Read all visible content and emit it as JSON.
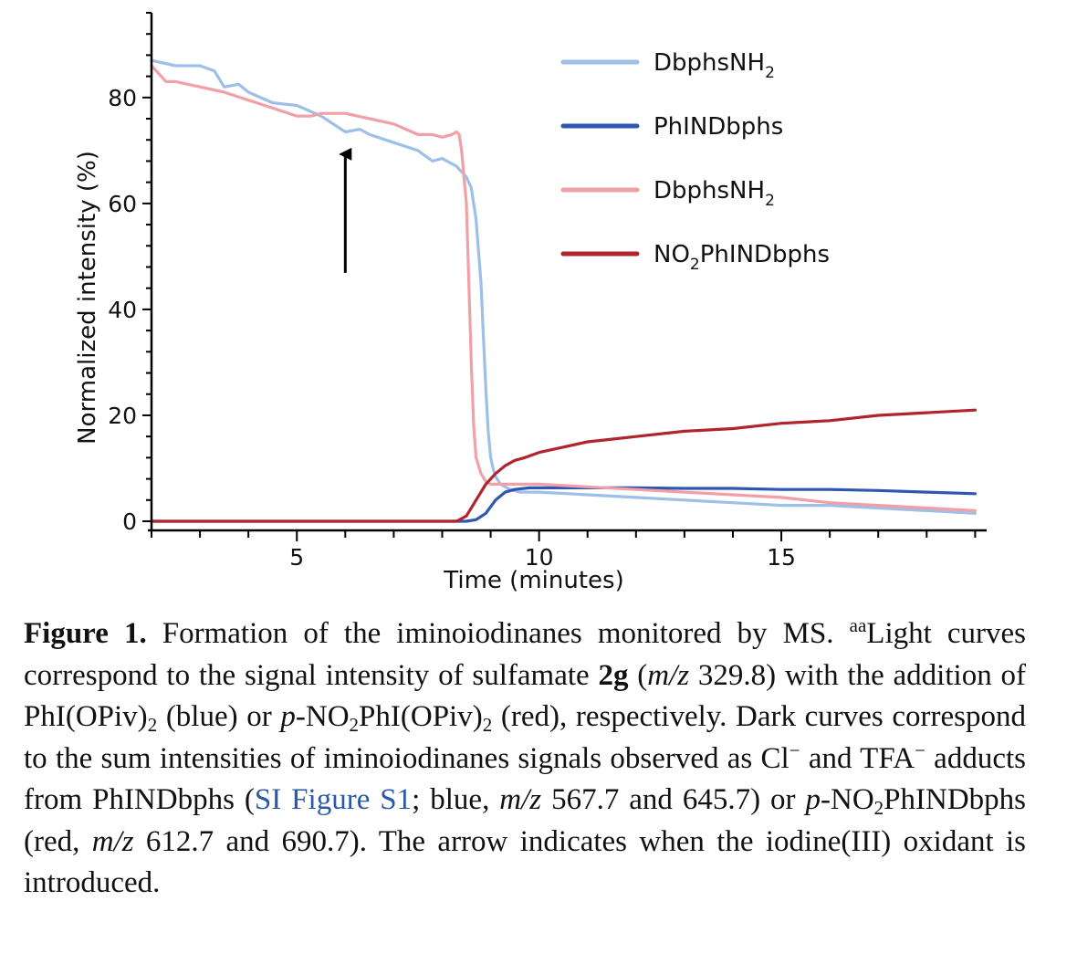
{
  "chart_data": {
    "type": "line",
    "xlabel": "Time (minutes)",
    "ylabel": "Normalized intensity (%)",
    "xlim": [
      2,
      19.2
    ],
    "ylim": [
      0,
      96
    ],
    "x_ticks": [
      5,
      10,
      15
    ],
    "y_ticks": [
      0,
      20,
      40,
      60,
      80
    ],
    "arrow": {
      "x": 6.0,
      "y_from": 50,
      "y_to": 70
    },
    "legend_position": "top-right",
    "series": [
      {
        "name": "DbphsNH",
        "name_sub": "2",
        "color": "#9dbfe8",
        "x": [
          2,
          2.5,
          3,
          3.3,
          3.5,
          3.8,
          4,
          4.5,
          5,
          5.5,
          6,
          6.3,
          6.5,
          7,
          7.5,
          7.8,
          8,
          8.3,
          8.5,
          8.6,
          8.7,
          8.8,
          8.85,
          8.9,
          8.95,
          9.0,
          9.05,
          9.1,
          9.2,
          9.4,
          9.6,
          10,
          11,
          12,
          13,
          14,
          15,
          16,
          17,
          18,
          19
        ],
        "y": [
          87,
          86,
          86,
          85,
          82,
          82.5,
          81,
          79,
          78.5,
          76.5,
          73.5,
          74,
          73,
          71.5,
          70,
          68,
          68.5,
          67,
          65,
          63,
          57,
          45,
          35,
          25,
          17,
          12,
          10,
          8.5,
          7,
          6,
          5.5,
          5.5,
          5,
          4.5,
          4,
          3.5,
          3,
          3,
          2.5,
          2,
          1.5
        ]
      },
      {
        "name": "PhINDbphs",
        "name_sub": "",
        "color": "#2f56b0",
        "x": [
          2,
          8.5,
          8.7,
          8.9,
          9.1,
          9.3,
          9.5,
          9.8,
          10,
          11,
          12,
          13,
          14,
          15,
          16,
          17,
          18,
          19
        ],
        "y": [
          0,
          0,
          0.3,
          1.5,
          4,
          5.5,
          6,
          6.3,
          6.3,
          6.3,
          6.3,
          6.2,
          6.2,
          6,
          6,
          5.8,
          5.5,
          5.2
        ]
      },
      {
        "name": "DbphsNH",
        "name_sub": "2",
        "color": "#f2a0a8",
        "x": [
          2,
          2.3,
          2.5,
          3,
          3.5,
          4,
          4.5,
          5,
          5.3,
          5.5,
          6,
          6.5,
          7,
          7.5,
          7.8,
          8,
          8.2,
          8.3,
          8.35,
          8.4,
          8.5,
          8.55,
          8.6,
          8.65,
          8.7,
          8.8,
          8.9,
          9.0,
          9.2,
          9.5,
          10,
          11,
          12,
          13,
          14,
          15,
          16,
          17,
          18,
          19
        ],
        "y": [
          86,
          83,
          83,
          82,
          81,
          79.5,
          78,
          76.5,
          76.5,
          77,
          77,
          76,
          75,
          73,
          73,
          72.5,
          73,
          73.5,
          73,
          70,
          60,
          45,
          30,
          18,
          12,
          9,
          7.5,
          7,
          7,
          7,
          7,
          6.5,
          6,
          5.5,
          5,
          4.5,
          3.5,
          3,
          2.5,
          2
        ]
      },
      {
        "name": "NO",
        "name_sub": "2",
        "name_rest": "PhINDbphs",
        "color": "#b0242c",
        "x": [
          2,
          8.3,
          8.5,
          8.7,
          8.9,
          9.1,
          9.3,
          9.5,
          9.7,
          10,
          10.5,
          11,
          11.5,
          12,
          13,
          14,
          15,
          16,
          17,
          18,
          19
        ],
        "y": [
          0,
          0,
          1,
          4,
          7,
          9,
          10.5,
          11.5,
          12,
          13,
          14,
          15,
          15.5,
          16,
          17,
          17.5,
          18.5,
          19,
          20,
          20.5,
          21
        ]
      }
    ]
  },
  "caption": {
    "label": "Figure 1.",
    "t1": " Formation of the iminoiodinanes monitored by MS. ",
    "sup_aa": "aa",
    "t2": "Light curves correspond to the signal intensity of sulfamate ",
    "bold_2g": "2g",
    "t3": " (",
    "mz1": "m/z",
    "t4": " 329.8) with the addition of PhI(OPiv)",
    "sub1": "2",
    "t5": " (blue) or ",
    "p1": "p",
    "t6": "-NO",
    "sub2": "2",
    "t7": "PhI(OPiv)",
    "sub3": "2",
    "t8": " (red), respectively. Dark curves correspond to the sum intensities of iminoiodinanes signals observed as Cl",
    "sup_minus1": "−",
    "t9": " and TFA",
    "sup_minus2": "−",
    "t10": " adducts from PhINDbphs (",
    "link": "SI Figure S1",
    "t11": "; blue, ",
    "mz2": "m/z",
    "t12": " 567.7 and 645.7) or ",
    "p2": "p",
    "t13": "-NO",
    "sub4": "2",
    "t14": "PhINDbphs (red, ",
    "mz3": "m/z",
    "t15": " 612.7 and 690.7). The arrow indicates when the iodine(III) oxidant is introduced."
  }
}
